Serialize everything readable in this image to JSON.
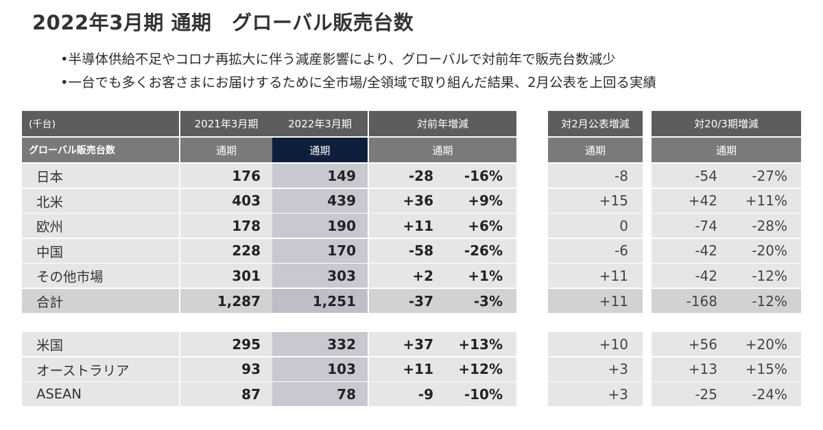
{
  "title": "2022年3月期 通期　グローバル販売台数",
  "bullets": [
    "•半導体供給不足やコロナ再拡大に伴う減産影響により、グローバルで対前年で販売台数減少",
    "•一台でも多くお客さまにお届けするために全市場/全領域で取り組んだ結果、2月公表を上回る実績"
  ],
  "table": {
    "unit_label": "(千台)",
    "row_header_label": "グローバル販売台数",
    "col_fy2021": "2021年3月期",
    "col_fy2022": "2022年3月期",
    "col_yoy": "対前年増減",
    "col_vs_feb": "対2月公表増減",
    "col_vs_fy20": "対20/3期増減",
    "sub_fy2021": "通期",
    "sub_fy2022": "通期",
    "sub_yoy": "通期",
    "sub_vs_feb": "通期",
    "sub_vs_fy20": "通期",
    "rows": [
      {
        "label": "日本",
        "fy2021": "176",
        "fy2022": "149",
        "yoy": "-28",
        "yoy_pct": "-16%",
        "vs_feb": "-8",
        "vs_fy20": "-54",
        "vs_fy20_pct": "-27%"
      },
      {
        "label": "北米",
        "fy2021": "403",
        "fy2022": "439",
        "yoy": "+36",
        "yoy_pct": "+9%",
        "vs_feb": "+15",
        "vs_fy20": "+42",
        "vs_fy20_pct": "+11%"
      },
      {
        "label": "欧州",
        "fy2021": "178",
        "fy2022": "190",
        "yoy": "+11",
        "yoy_pct": "+6%",
        "vs_feb": "0",
        "vs_fy20": "-74",
        "vs_fy20_pct": "-28%"
      },
      {
        "label": "中国",
        "fy2021": "228",
        "fy2022": "170",
        "yoy": "-58",
        "yoy_pct": "-26%",
        "vs_feb": "-6",
        "vs_fy20": "-42",
        "vs_fy20_pct": "-20%"
      },
      {
        "label": "その他市場",
        "fy2021": "301",
        "fy2022": "303",
        "yoy": "+2",
        "yoy_pct": "+1%",
        "vs_feb": "+11",
        "vs_fy20": "-42",
        "vs_fy20_pct": "-12%"
      },
      {
        "label": "合計",
        "fy2021": "1,287",
        "fy2022": "1,251",
        "yoy": "-37",
        "yoy_pct": "-3%",
        "vs_feb": "+11",
        "vs_fy20": "-168",
        "vs_fy20_pct": "-12%"
      }
    ],
    "sub_rows": [
      {
        "label": "米国",
        "fy2021": "295",
        "fy2022": "332",
        "yoy": "+37",
        "yoy_pct": "+13%",
        "vs_feb": "+10",
        "vs_fy20": "+56",
        "vs_fy20_pct": "+20%"
      },
      {
        "label": "オーストラリア",
        "fy2021": "93",
        "fy2022": "103",
        "yoy": "+11",
        "yoy_pct": "+12%",
        "vs_feb": "+3",
        "vs_fy20": "+13",
        "vs_fy20_pct": "+15%"
      },
      {
        "label": "ASEAN",
        "fy2021": "87",
        "fy2022": "78",
        "yoy": "-9",
        "yoy_pct": "-10%",
        "vs_feb": "+3",
        "vs_fy20": "-25",
        "vs_fy20_pct": "-24%"
      }
    ]
  },
  "colors": {
    "header_dark": "#5d5d5d",
    "header_mid": "#7a7a7a",
    "highlight_header": "#0e1f3e",
    "cell_bg": "#e6e6e6",
    "highlight_cell": "#c7c8d0"
  }
}
